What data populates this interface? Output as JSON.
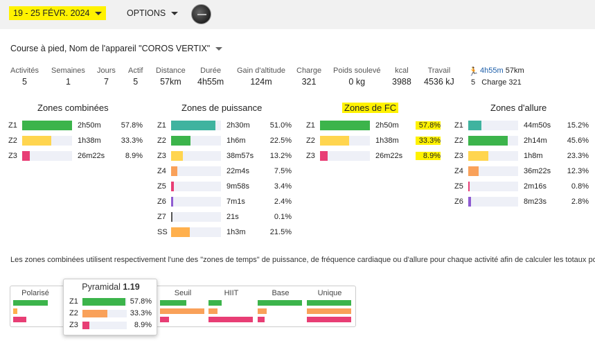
{
  "colors": {
    "green": "#3cb44b",
    "yellow": "#ffd54f",
    "pink": "#e83e75",
    "teal": "#3fb39f",
    "orange": "#ffb04d",
    "orange2": "#f9a15a",
    "red": "#e83e75",
    "purple": "#8e5bd1",
    "highlight": "#fff200"
  },
  "topbar": {
    "date_range": "19 - 25 FÉVR. 2024",
    "options_label": "OPTIONS"
  },
  "filter": {
    "device_label": "Course à pied, Nom de l'appareil \"COROS VERTIX\""
  },
  "stats": [
    {
      "label": "Activités",
      "value": "5"
    },
    {
      "label": "Semaines",
      "value": "1"
    },
    {
      "label": "Jours",
      "value": "7"
    },
    {
      "label": "Actif",
      "value": "5"
    },
    {
      "label": "Distance",
      "value": "57km"
    },
    {
      "label": "Durée",
      "value": "4h55m"
    },
    {
      "label": "Gain d'altitude",
      "value": "124m"
    },
    {
      "label": "Charge",
      "value": "321"
    },
    {
      "label": "Poids soulevé",
      "value": "0 kg"
    },
    {
      "label": "kcal",
      "value": "3988"
    },
    {
      "label": "Travail",
      "value": "4536 kJ"
    }
  ],
  "activity_summary": {
    "duration": "4h55m",
    "distance": "57km",
    "count": "5",
    "charge": "Charge 321"
  },
  "zones": {
    "combined": {
      "title": "Zones combinées",
      "rows": [
        {
          "zone": "Z1",
          "time": "2h50m",
          "pct": "57.8%",
          "fraction": 0.578,
          "color": "#3cb44b"
        },
        {
          "zone": "Z2",
          "time": "1h38m",
          "pct": "33.3%",
          "fraction": 0.333,
          "color": "#ffd54f"
        },
        {
          "zone": "Z3",
          "time": "26m22s",
          "pct": "8.9%",
          "fraction": 0.089,
          "color": "#e83e75"
        }
      ]
    },
    "power": {
      "title": "Zones de puissance",
      "rows": [
        {
          "zone": "Z1",
          "time": "2h30m",
          "pct": "51.0%",
          "fraction": 0.51,
          "color": "#3fb39f"
        },
        {
          "zone": "Z2",
          "time": "1h6m",
          "pct": "22.5%",
          "fraction": 0.225,
          "color": "#3cb44b"
        },
        {
          "zone": "Z3",
          "time": "38m57s",
          "pct": "13.2%",
          "fraction": 0.132,
          "color": "#ffd54f"
        },
        {
          "zone": "Z4",
          "time": "22m4s",
          "pct": "7.5%",
          "fraction": 0.075,
          "color": "#f9a15a"
        },
        {
          "zone": "Z5",
          "time": "9m58s",
          "pct": "3.4%",
          "fraction": 0.034,
          "color": "#e83e75"
        },
        {
          "zone": "Z6",
          "time": "7m1s",
          "pct": "2.4%",
          "fraction": 0.024,
          "color": "#8e5bd1"
        },
        {
          "zone": "Z7",
          "time": "21s",
          "pct": "0.1%",
          "fraction": 0.001,
          "color": "#555555"
        },
        {
          "zone": "SS",
          "time": "1h3m",
          "pct": "21.5%",
          "fraction": 0.215,
          "color": "#ffb04d"
        }
      ]
    },
    "hr": {
      "title": "Zones de FC",
      "rows": [
        {
          "zone": "Z1",
          "time": "2h50m",
          "pct": "57.8%",
          "fraction": 0.578,
          "color": "#3cb44b"
        },
        {
          "zone": "Z2",
          "time": "1h38m",
          "pct": "33.3%",
          "fraction": 0.333,
          "color": "#ffd54f"
        },
        {
          "zone": "Z3",
          "time": "26m22s",
          "pct": "8.9%",
          "fraction": 0.089,
          "color": "#e83e75"
        }
      ]
    },
    "pace": {
      "title": "Zones d'allure",
      "rows": [
        {
          "zone": "Z1",
          "time": "44m50s",
          "pct": "15.2%",
          "fraction": 0.152,
          "color": "#3fb39f"
        },
        {
          "zone": "Z2",
          "time": "2h14m",
          "pct": "45.6%",
          "fraction": 0.456,
          "color": "#3cb44b"
        },
        {
          "zone": "Z3",
          "time": "1h8m",
          "pct": "23.3%",
          "fraction": 0.233,
          "color": "#ffd54f"
        },
        {
          "zone": "Z4",
          "time": "36m22s",
          "pct": "12.3%",
          "fraction": 0.123,
          "color": "#f9a15a"
        },
        {
          "zone": "Z5",
          "time": "2m16s",
          "pct": "0.8%",
          "fraction": 0.008,
          "color": "#e83e75"
        },
        {
          "zone": "Z6",
          "time": "8m23s",
          "pct": "2.8%",
          "fraction": 0.028,
          "color": "#8e5bd1"
        }
      ]
    }
  },
  "note": "Les zones combinées utilisent respectivement l'une des \"zones de temps\" de puissance, de fréquence cardiaque ou d'allure pour chaque activité afin de calculer les totaux pour la",
  "distribution": {
    "columns": [
      {
        "label": "Polarisé",
        "bars": [
          {
            "fraction": 0.8,
            "color": "#3cb44b"
          },
          {
            "fraction": 0.1,
            "color": "#ffb04d"
          },
          {
            "fraction": 0.3,
            "color": "#e83e75"
          }
        ]
      },
      {
        "label": "Seuil",
        "bars": [
          {
            "fraction": 0.6,
            "color": "#3cb44b"
          },
          {
            "fraction": 1.0,
            "color": "#f9a15a"
          },
          {
            "fraction": 0.2,
            "color": "#e83e75"
          }
        ]
      },
      {
        "label": "HIIT",
        "bars": [
          {
            "fraction": 0.3,
            "color": "#3cb44b"
          },
          {
            "fraction": 0.2,
            "color": "#f9a15a"
          },
          {
            "fraction": 1.0,
            "color": "#e83e75"
          }
        ]
      },
      {
        "label": "Base",
        "bars": [
          {
            "fraction": 1.0,
            "color": "#3cb44b"
          },
          {
            "fraction": 0.2,
            "color": "#f9a15a"
          },
          {
            "fraction": 0.15,
            "color": "#e83e75"
          }
        ]
      },
      {
        "label": "Unique",
        "bars": [
          {
            "fraction": 1.0,
            "color": "#3cb44b"
          },
          {
            "fraction": 1.0,
            "color": "#f9a15a"
          },
          {
            "fraction": 1.0,
            "color": "#e83e75"
          }
        ]
      }
    ]
  },
  "popup": {
    "title": "Pyramidal",
    "score": "1.19",
    "rows": [
      {
        "zone": "Z1",
        "pct": "57.8%",
        "fraction": 0.97,
        "color": "#3cb44b"
      },
      {
        "zone": "Z2",
        "pct": "33.3%",
        "fraction": 0.56,
        "color": "#f9a15a"
      },
      {
        "zone": "Z3",
        "pct": "8.9%",
        "fraction": 0.15,
        "color": "#e83e75"
      }
    ]
  }
}
